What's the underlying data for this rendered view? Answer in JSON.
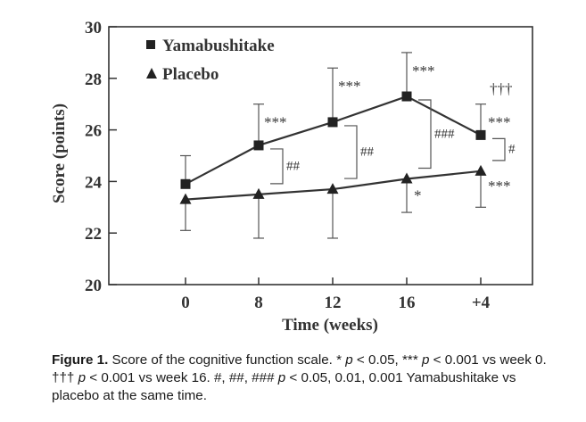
{
  "chart_data": {
    "type": "line",
    "title": "",
    "xlabel": "Time (weeks)",
    "ylabel": "Score (points)",
    "categories": [
      "0",
      "8",
      "12",
      "16",
      "+4"
    ],
    "ylim": [
      20,
      30
    ],
    "yticks": [
      "20",
      "22",
      "24",
      "26",
      "28",
      "30"
    ],
    "grid": false,
    "legend_placement": "top-left",
    "series": [
      {
        "name": "Yamabushitake",
        "marker": "square",
        "color": "#333333",
        "values": [
          23.9,
          25.4,
          26.3,
          27.3,
          25.8
        ],
        "error_upper": [
          25.0,
          27.0,
          28.4,
          29.0,
          27.0
        ]
      },
      {
        "name": "Placebo",
        "marker": "triangle",
        "color": "#333333",
        "values": [
          23.3,
          23.5,
          23.7,
          24.1,
          24.4
        ],
        "error_lower": [
          22.1,
          21.8,
          21.8,
          22.8,
          23.0
        ]
      }
    ],
    "annotations": {
      "yamabushitake_vs_week0": [
        "",
        "***",
        "***",
        "***",
        "***"
      ],
      "yamabushitake_vs_week16": [
        "",
        "",
        "",
        "",
        "†††"
      ],
      "placebo_vs_week0": [
        "",
        "",
        "",
        "*",
        "***"
      ],
      "between_groups": [
        "",
        "##",
        "##",
        "###",
        "#"
      ]
    }
  },
  "caption": {
    "label": "Figure 1.",
    "text_1": " Score of the cognitive function scale. * ",
    "p1": "p",
    "text_2": " < 0.05, *** ",
    "p2": "p",
    "text_3": " < 0.001 vs week 0. ††† ",
    "p3": "p",
    "text_4": " < 0.001 vs week 16. #, ##, ### ",
    "p4": "p",
    "text_5": " < 0.05, 0.01, 0.001 Yamabushitake vs placebo at the same time."
  }
}
